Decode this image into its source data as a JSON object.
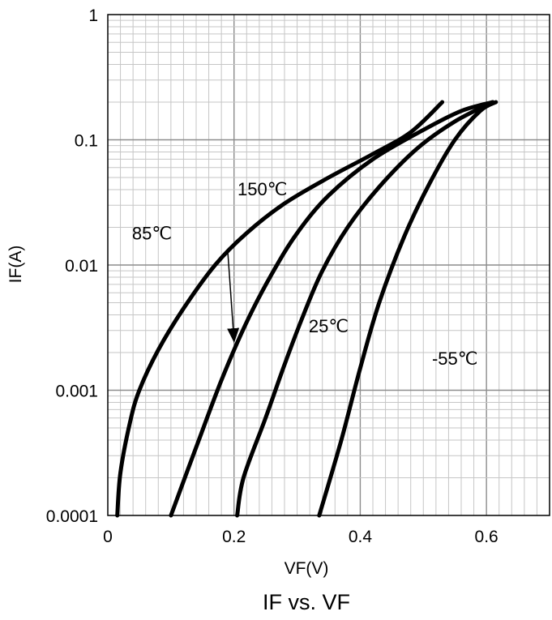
{
  "chart_data": {
    "type": "line",
    "title": "IF vs. VF",
    "xlabel": "VF(V)",
    "ylabel": "IF(A)",
    "xlim": [
      0,
      0.7
    ],
    "ylim": [
      0.0001,
      1
    ],
    "yscale": "log",
    "grid": true,
    "x_ticks": [
      "0",
      "0.2",
      "0.4",
      "0.6"
    ],
    "y_ticks": [
      "0.0001",
      "0.001",
      "0.01",
      "0.1",
      "1"
    ],
    "series": [
      {
        "name": "150℃",
        "color": "#000000",
        "points": [
          [
            0.015,
            0.0001
          ],
          [
            0.02,
            0.00022
          ],
          [
            0.035,
            0.00055
          ],
          [
            0.05,
            0.001
          ],
          [
            0.08,
            0.0021
          ],
          [
            0.12,
            0.0045
          ],
          [
            0.17,
            0.01
          ],
          [
            0.22,
            0.018
          ],
          [
            0.28,
            0.031
          ],
          [
            0.35,
            0.05
          ],
          [
            0.42,
            0.077
          ],
          [
            0.48,
            0.115
          ],
          [
            0.53,
            0.2
          ]
        ]
      },
      {
        "name": "85℃",
        "color": "#000000",
        "points": [
          [
            0.1,
            0.0001
          ],
          [
            0.14,
            0.00035
          ],
          [
            0.18,
            0.0012
          ],
          [
            0.22,
            0.0035
          ],
          [
            0.26,
            0.0085
          ],
          [
            0.3,
            0.018
          ],
          [
            0.35,
            0.036
          ],
          [
            0.42,
            0.07
          ],
          [
            0.5,
            0.12
          ],
          [
            0.56,
            0.17
          ],
          [
            0.61,
            0.2
          ]
        ]
      },
      {
        "name": "25℃",
        "color": "#000000",
        "points": [
          [
            0.205,
            0.0001
          ],
          [
            0.215,
            0.0002
          ],
          [
            0.25,
            0.0006
          ],
          [
            0.28,
            0.0016
          ],
          [
            0.31,
            0.004
          ],
          [
            0.34,
            0.009
          ],
          [
            0.38,
            0.02
          ],
          [
            0.43,
            0.042
          ],
          [
            0.49,
            0.085
          ],
          [
            0.55,
            0.14
          ],
          [
            0.61,
            0.2
          ]
        ]
      },
      {
        "name": "-55℃",
        "color": "#000000",
        "points": [
          [
            0.335,
            0.0001
          ],
          [
            0.37,
            0.0004
          ],
          [
            0.4,
            0.0015
          ],
          [
            0.43,
            0.005
          ],
          [
            0.47,
            0.017
          ],
          [
            0.51,
            0.045
          ],
          [
            0.55,
            0.1
          ],
          [
            0.59,
            0.17
          ],
          [
            0.615,
            0.2
          ]
        ]
      }
    ],
    "annotations": [
      {
        "text": "150℃",
        "x": 0.245,
        "y": 0.036
      },
      {
        "text": "85℃",
        "x": 0.07,
        "y": 0.016
      },
      {
        "text": "25℃",
        "x": 0.35,
        "y": 0.0029
      },
      {
        "text": "-55℃",
        "x": 0.55,
        "y": 0.0016
      }
    ],
    "arrow": {
      "from": [
        0.19,
        0.013
      ],
      "to": [
        0.2,
        0.0025
      ]
    }
  }
}
